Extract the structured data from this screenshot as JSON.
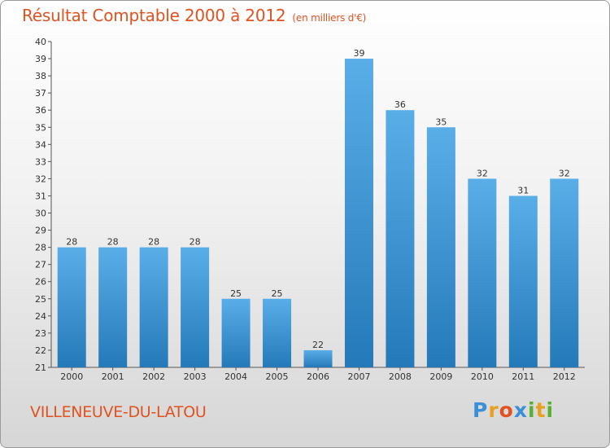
{
  "chart_data": {
    "type": "bar",
    "title": "Résultat Comptable 2000 à 2012",
    "subtitle": "(en milliers d'€)",
    "categories": [
      "2000",
      "2001",
      "2002",
      "2003",
      "2004",
      "2005",
      "2006",
      "2007",
      "2008",
      "2009",
      "2010",
      "2011",
      "2012"
    ],
    "values": [
      28,
      28,
      28,
      28,
      25,
      25,
      22,
      39,
      36,
      35,
      32,
      31,
      32
    ],
    "ylim": [
      21,
      40
    ],
    "yticks": [
      21,
      22,
      23,
      24,
      25,
      26,
      27,
      28,
      29,
      30,
      31,
      32,
      33,
      34,
      35,
      36,
      37,
      38,
      39,
      40
    ],
    "xlabel": "",
    "ylabel": "",
    "grid": false
  },
  "footer": {
    "commune": "VILLENEUVE-DU-LATOU",
    "logo_letters": [
      "P",
      "r",
      "o",
      "x",
      "i",
      "t",
      "i"
    ]
  },
  "colors": {
    "title": "#e0521f",
    "bar_top": "#5aaee8",
    "bar_bottom": "#2479b8",
    "logo": [
      "#3a8fd6",
      "#e8a020",
      "#e0521f",
      "#3a8fd6",
      "#58b030",
      "#e8a020",
      "#58b030"
    ]
  }
}
